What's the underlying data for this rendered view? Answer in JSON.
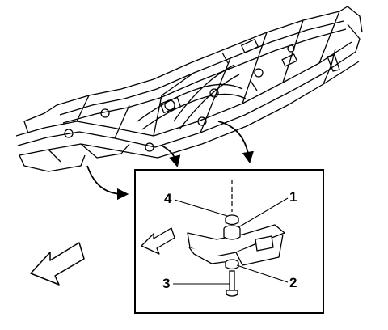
{
  "callouts": {
    "c1": "1",
    "c2": "2",
    "c3": "3",
    "c4": "4"
  },
  "colors": {
    "line": "#000000",
    "background": "#ffffff"
  },
  "icons": {
    "front_arrow_large": "hollow-arrow-icon",
    "front_arrow_small": "hollow-arrow-icon"
  }
}
